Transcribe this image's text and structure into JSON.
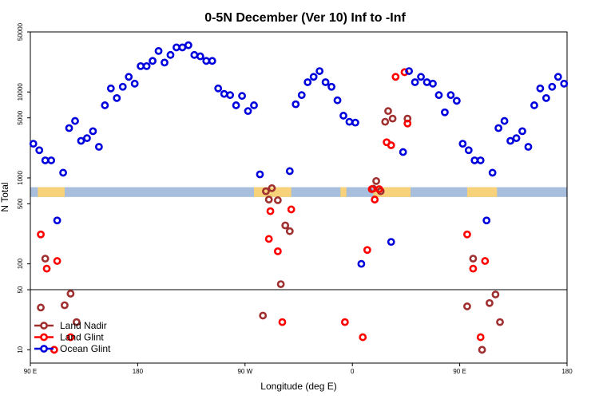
{
  "chart_data": {
    "type": "scatter",
    "title": "0-5N December (Ver 10)   Inf to -Inf",
    "xlabel": "Longitude (deg E)",
    "ylabel": "N Total",
    "xlim": [
      0,
      360
    ],
    "ylim_log": [
      7,
      50000
    ],
    "x_ticks": [
      {
        "value": 0,
        "label": "90 E"
      },
      {
        "value": 72,
        "label": "180"
      },
      {
        "value": 144,
        "label": "90 W"
      },
      {
        "value": 216,
        "label": "0"
      },
      {
        "value": 288,
        "label": "90 E"
      },
      {
        "value": 360,
        "label": "180"
      }
    ],
    "y_ticks": [
      {
        "value": 10,
        "label": "10"
      },
      {
        "value": 50,
        "label": "50"
      },
      {
        "value": 100,
        "label": "100"
      },
      {
        "value": 500,
        "label": "500"
      },
      {
        "value": 1000,
        "label": "1000"
      },
      {
        "value": 5000,
        "label": "5000"
      },
      {
        "value": 10000,
        "label": "10000"
      },
      {
        "value": 50000,
        "label": "50000"
      }
    ],
    "reference_line": 50,
    "land_mask_band": {
      "y_low": 600,
      "y_high": 780,
      "ocean_color": "#a8bedd",
      "land_color": "#f7d27a"
    },
    "land_spans": [
      [
        5,
        23
      ],
      [
        150,
        175
      ],
      [
        208,
        212
      ],
      [
        230,
        255
      ],
      [
        293,
        313
      ]
    ],
    "series": [
      {
        "name": "Land Nadir",
        "color": "#a03030",
        "points": [
          [
            7,
            31
          ],
          [
            10,
            115
          ],
          [
            23,
            33
          ],
          [
            27,
            45
          ],
          [
            31,
            21
          ],
          [
            156,
            25
          ],
          [
            158,
            700
          ],
          [
            160,
            560
          ],
          [
            162,
            760
          ],
          [
            166,
            550
          ],
          [
            168,
            58
          ],
          [
            171,
            280
          ],
          [
            174,
            240
          ],
          [
            230,
            750
          ],
          [
            232,
            920
          ],
          [
            235,
            700
          ],
          [
            238,
            4500
          ],
          [
            240,
            6000
          ],
          [
            243,
            4900
          ],
          [
            253,
            4900
          ],
          [
            293,
            32
          ],
          [
            297,
            115
          ],
          [
            303,
            10
          ],
          [
            308,
            35
          ],
          [
            312,
            44
          ],
          [
            315,
            21
          ]
        ]
      },
      {
        "name": "Land Glint",
        "color": "#ff0000",
        "points": [
          [
            7,
            220
          ],
          [
            11,
            88
          ],
          [
            16,
            10
          ],
          [
            18,
            108
          ],
          [
            27,
            14
          ],
          [
            160,
            195
          ],
          [
            161,
            410
          ],
          [
            166,
            140
          ],
          [
            169,
            21
          ],
          [
            175,
            430
          ],
          [
            211,
            21
          ],
          [
            223,
            14
          ],
          [
            226,
            145
          ],
          [
            229,
            740
          ],
          [
            231,
            560
          ],
          [
            234,
            740
          ],
          [
            239,
            2600
          ],
          [
            242,
            2400
          ],
          [
            245,
            15000
          ],
          [
            251,
            17000
          ],
          [
            253,
            4300
          ],
          [
            293,
            220
          ],
          [
            297,
            88
          ],
          [
            302,
            14
          ],
          [
            305,
            108
          ]
        ]
      },
      {
        "name": "Ocean Glint",
        "color": "#0000dd",
        "points": [
          [
            2,
            2500
          ],
          [
            6,
            2100
          ],
          [
            10,
            1600
          ],
          [
            14,
            1600
          ],
          [
            18,
            320
          ],
          [
            22,
            1150
          ],
          [
            26,
            3800
          ],
          [
            30,
            4600
          ],
          [
            34,
            2700
          ],
          [
            38,
            2900
          ],
          [
            42,
            3500
          ],
          [
            46,
            2300
          ],
          [
            50,
            7000
          ],
          [
            54,
            11000
          ],
          [
            58,
            8500
          ],
          [
            62,
            11500
          ],
          [
            66,
            15000
          ],
          [
            70,
            12500
          ],
          [
            74,
            20000
          ],
          [
            78,
            20000
          ],
          [
            82,
            23000
          ],
          [
            86,
            30000
          ],
          [
            90,
            22000
          ],
          [
            94,
            27000
          ],
          [
            98,
            33000
          ],
          [
            102,
            33000
          ],
          [
            106,
            35000
          ],
          [
            110,
            27000
          ],
          [
            114,
            26000
          ],
          [
            118,
            23000
          ],
          [
            122,
            23000
          ],
          [
            126,
            11000
          ],
          [
            130,
            9500
          ],
          [
            134,
            9200
          ],
          [
            138,
            7000
          ],
          [
            142,
            9000
          ],
          [
            146,
            6000
          ],
          [
            150,
            7000
          ],
          [
            154,
            1100
          ],
          [
            174,
            1200
          ],
          [
            178,
            7200
          ],
          [
            182,
            9200
          ],
          [
            186,
            13000
          ],
          [
            190,
            15000
          ],
          [
            194,
            17500
          ],
          [
            198,
            13000
          ],
          [
            202,
            11500
          ],
          [
            206,
            8000
          ],
          [
            210,
            5300
          ],
          [
            214,
            4500
          ],
          [
            218,
            4400
          ],
          [
            222,
            100
          ],
          [
            242,
            180
          ],
          [
            250,
            2000
          ],
          [
            254,
            17500
          ],
          [
            258,
            13000
          ],
          [
            262,
            15000
          ],
          [
            266,
            13000
          ],
          [
            270,
            12500
          ],
          [
            274,
            9200
          ],
          [
            278,
            5800
          ],
          [
            282,
            9200
          ],
          [
            286,
            7900
          ],
          [
            290,
            2500
          ],
          [
            294,
            2100
          ],
          [
            298,
            1600
          ],
          [
            302,
            1600
          ],
          [
            306,
            320
          ],
          [
            310,
            1150
          ],
          [
            314,
            3800
          ],
          [
            318,
            4600
          ],
          [
            322,
            2700
          ],
          [
            326,
            2900
          ],
          [
            330,
            3500
          ],
          [
            334,
            2300
          ],
          [
            338,
            7000
          ],
          [
            342,
            11000
          ],
          [
            346,
            8500
          ],
          [
            350,
            11500
          ],
          [
            354,
            15000
          ],
          [
            358,
            12500
          ]
        ]
      }
    ],
    "legend": {
      "placement": "bottom-left",
      "entries": [
        "Land Nadir",
        "Land Glint",
        "Ocean Glint"
      ]
    }
  }
}
